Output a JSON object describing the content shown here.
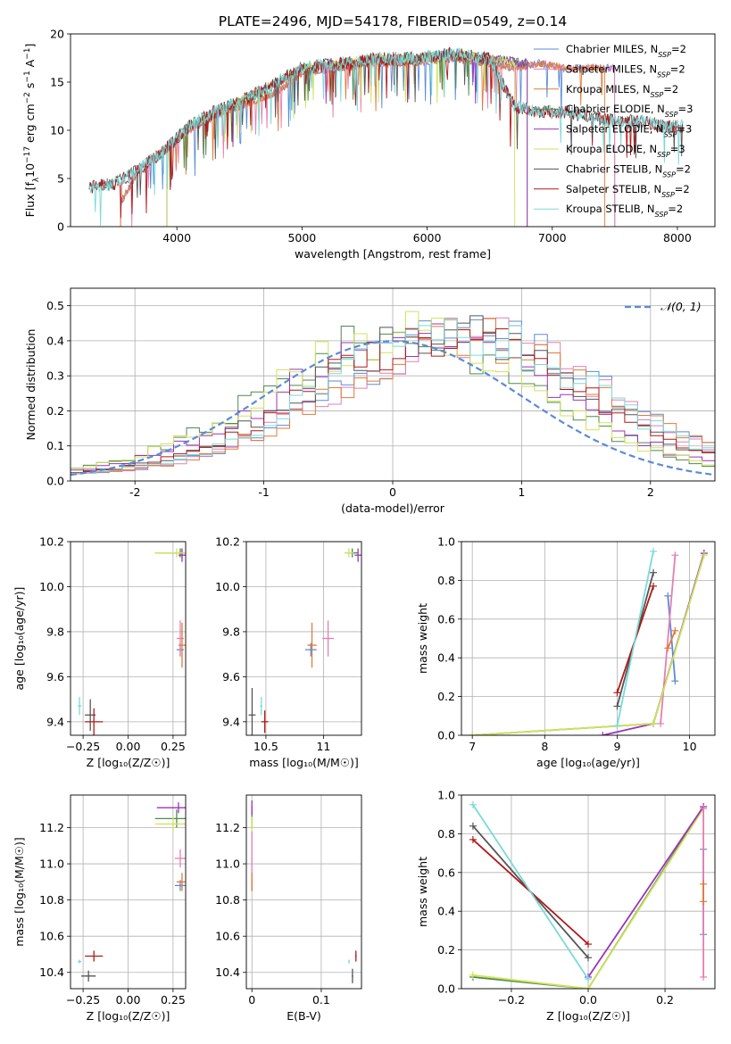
{
  "figure_title": "PLATE=2496, MJD=54178, FIBERID=0549, z=0.14",
  "colors": {
    "Chabrier MILES": "#5b8bd6",
    "Salpeter MILES": "#e57fb1",
    "Kroupa MILES": "#e07b39",
    "Chabrier ELODIE": "#4f8a4f",
    "Salpeter ELODIE": "#9b34b8",
    "Kroupa ELODIE": "#cfe35a",
    "Chabrier STELIB": "#555555",
    "Salpeter STELIB": "#b01818",
    "Kroupa STELIB": "#7ad9d9"
  },
  "chart_data": [
    {
      "id": "spectrum",
      "type": "line",
      "title": "PLATE=2496, MJD=54178, FIBERID=0549, z=0.14",
      "xlabel": "wavelength [Angstrom, rest frame]",
      "ylabel_parts": [
        "Flux [f",
        "λ",
        "10",
        "−17",
        " erg cm",
        "−2",
        " s",
        "−1",
        " A",
        "−1",
        "]"
      ],
      "xlim": [
        3150,
        8300
      ],
      "ylim": [
        0,
        20
      ],
      "xticks": [
        4000,
        5000,
        6000,
        7000,
        8000
      ],
      "yticks": [
        0,
        5,
        10,
        15,
        20
      ],
      "legend_position": "right",
      "series": [
        {
          "name": "Chabrier MILES",
          "suffix": "=2",
          "x": [
            3550,
            3700,
            3900,
            4100,
            4300,
            4500,
            4800,
            5000,
            5300,
            5600,
            5900,
            6200,
            6500,
            6700,
            6900,
            7100,
            7300,
            7500
          ],
          "y": [
            2.5,
            6,
            8,
            10,
            11.5,
            12.5,
            14,
            16,
            16.5,
            17,
            17,
            17.5,
            17,
            16.5,
            17,
            16.5,
            16.5,
            16.5
          ]
        },
        {
          "name": "Salpeter MILES",
          "suffix": "=2",
          "x": [
            3550,
            3700,
            3900,
            4100,
            4300,
            4500,
            4800,
            5000,
            5300,
            5600,
            5900,
            6200,
            6500,
            6700,
            6900,
            7100,
            7300,
            7500
          ],
          "y": [
            2.5,
            6,
            8,
            10,
            11.5,
            12.5,
            14,
            16,
            16.5,
            17,
            17,
            17.5,
            17,
            16.5,
            17,
            16.5,
            16.5,
            16.5
          ]
        },
        {
          "name": "Kroupa MILES",
          "suffix": "=2",
          "x": [
            3550,
            3700,
            3900,
            4100,
            4300,
            4500,
            4800,
            5000,
            5300,
            5600,
            5900,
            6200,
            6500,
            6700,
            6900,
            7100,
            7300,
            7420
          ],
          "y": [
            2.5,
            6,
            8,
            10,
            11.5,
            12.5,
            14,
            16,
            16.5,
            17,
            17,
            17.5,
            17,
            16.5,
            17,
            16.5,
            16.5,
            16.5
          ]
        },
        {
          "name": "Chabrier ELODIE",
          "suffix": "=3",
          "x": [
            3920,
            4100,
            4300,
            4500,
            4800,
            5000,
            5300,
            5600,
            5900,
            6200,
            6500,
            6800
          ],
          "y": [
            8,
            10.5,
            12,
            13,
            15,
            16.5,
            17,
            17.5,
            17.5,
            18,
            17.5,
            17
          ]
        },
        {
          "name": "Salpeter ELODIE",
          "suffix": "=3",
          "x": [
            3920,
            4100,
            4300,
            4500,
            4800,
            5000,
            5300,
            5600,
            5900,
            6200,
            6500,
            6800
          ],
          "y": [
            8,
            10.5,
            12,
            13,
            15,
            16.5,
            17,
            17.5,
            17.5,
            18,
            17.5,
            17
          ]
        },
        {
          "name": "Kroupa ELODIE",
          "suffix": "=3",
          "x": [
            3920,
            4100,
            4300,
            4500,
            4800,
            5000,
            5300,
            5600,
            5900,
            6200,
            6500,
            6700
          ],
          "y": [
            8,
            10.5,
            12,
            13,
            15,
            16.5,
            17,
            17.5,
            17.5,
            18,
            17.5,
            17
          ]
        },
        {
          "name": "Chabrier STELIB",
          "suffix": "=2",
          "x": [
            3300,
            3500,
            3700,
            3900,
            4100,
            4300,
            4500,
            4800,
            5000,
            5300,
            5600,
            5900,
            6200,
            6500,
            6700,
            6900,
            7100,
            7300,
            7500,
            7700,
            7900,
            8050
          ],
          "y": [
            4.2,
            4.5,
            6,
            8,
            10.5,
            12,
            13,
            15,
            16.5,
            17,
            17.5,
            17.5,
            18,
            17.5,
            12.5,
            12,
            12,
            11.5,
            11,
            11,
            10.5,
            10.5
          ]
        },
        {
          "name": "Salpeter STELIB",
          "suffix": "=2",
          "x": [
            3300,
            3500,
            3700,
            3900,
            4100,
            4300,
            4500,
            4800,
            5000,
            5300,
            5600,
            5900,
            6200,
            6500,
            6700,
            6900,
            7100,
            7300,
            7500,
            7700,
            7900,
            8050
          ],
          "y": [
            4.2,
            4.5,
            6,
            8,
            10.5,
            12,
            13,
            15,
            16.5,
            17,
            17.5,
            17.5,
            18,
            17.5,
            12.5,
            12,
            12,
            11.5,
            11,
            11,
            10.5,
            10.5
          ]
        },
        {
          "name": "Kroupa STELIB",
          "suffix": "=2",
          "x": [
            3300,
            3500,
            3700,
            3900,
            4100,
            4300,
            4500,
            4800,
            5000,
            5300,
            5600,
            5900,
            6200,
            6500,
            6700,
            6900,
            7100,
            7300,
            7500,
            7700,
            7900,
            8050
          ],
          "y": [
            4.2,
            4.5,
            6,
            8,
            10.5,
            12,
            13,
            15,
            16.5,
            17,
            17.5,
            17.5,
            18,
            17.5,
            12.5,
            12,
            12,
            11.5,
            11,
            11,
            10.5,
            10.5
          ]
        }
      ]
    },
    {
      "id": "residuals",
      "type": "line",
      "xlabel": "(data-model)/error",
      "ylabel": "Normed distribution",
      "xlim": [
        -2.5,
        2.5
      ],
      "ylim": [
        0,
        0.55
      ],
      "xticks": [
        -2,
        -1,
        0,
        1,
        2
      ],
      "yticks": [
        0.0,
        0.1,
        0.2,
        0.3,
        0.4,
        0.5
      ],
      "grid": true,
      "legend_position": "top-right",
      "gaussian_label": "𝒩(0, 1)",
      "gaussian_color": "#5b8bd6",
      "hist_mu": [
        0.6,
        0.6,
        0.6,
        0.1,
        0.2,
        0.1,
        0.4,
        0.4,
        0.5
      ]
    },
    {
      "id": "age-Z",
      "type": "scatter",
      "xlabel": "Z [log₁₀(Z/Z☉)]",
      "ylabel": "age  [log₁₀(age/yr)]",
      "xlim": [
        -0.32,
        0.32
      ],
      "ylim": [
        9.34,
        10.2
      ],
      "xticks": [
        -0.25,
        0.0,
        0.25
      ],
      "xtick_labels": [
        "−0.25",
        "0.00",
        "0.25"
      ],
      "yticks": [
        9.4,
        9.6,
        9.8,
        10.0,
        10.2
      ],
      "grid": true
    },
    {
      "id": "age-mass",
      "type": "scatter",
      "xlabel": "mass [log₁₀(M/M☉)]",
      "xlim": [
        10.33,
        11.33
      ],
      "ylim": [
        9.34,
        10.2
      ],
      "xticks": [
        10.5,
        11.0
      ],
      "yticks": [
        9.4,
        9.6,
        9.8,
        10.0,
        10.2
      ],
      "grid": true
    },
    {
      "id": "weight-age",
      "type": "line",
      "xlabel": "age  [log₁₀(age/yr)]",
      "ylabel": "mass weight",
      "xlim": [
        6.85,
        10.35
      ],
      "ylim": [
        0,
        1
      ],
      "xticks": [
        7,
        8,
        9,
        10
      ],
      "yticks": [
        0.0,
        0.2,
        0.4,
        0.6,
        0.8,
        1.0
      ],
      "grid": true,
      "series": [
        {
          "name": "Chabrier MILES",
          "x": [
            9.7,
            9.8
          ],
          "y": [
            0.72,
            0.28
          ]
        },
        {
          "name": "Salpeter MILES",
          "x": [
            9.6,
            9.8
          ],
          "y": [
            0.06,
            0.93
          ]
        },
        {
          "name": "Kroupa MILES",
          "x": [
            9.7,
            9.8
          ],
          "y": [
            0.45,
            0.54
          ]
        },
        {
          "name": "Chabrier ELODIE",
          "x": [
            7.0,
            9.5,
            10.2
          ],
          "y": [
            0.0,
            0.06,
            0.94
          ]
        },
        {
          "name": "Salpeter ELODIE",
          "x": [
            8.8,
            9.5,
            10.2
          ],
          "y": [
            0.0,
            0.06,
            0.94
          ]
        },
        {
          "name": "Kroupa ELODIE",
          "x": [
            7.0,
            9.5,
            10.2
          ],
          "y": [
            0.0,
            0.06,
            0.93
          ]
        },
        {
          "name": "Chabrier STELIB",
          "x": [
            9.0,
            9.5
          ],
          "y": [
            0.15,
            0.84
          ]
        },
        {
          "name": "Salpeter STELIB",
          "x": [
            9.0,
            9.5
          ],
          "y": [
            0.22,
            0.77
          ]
        },
        {
          "name": "Kroupa STELIB",
          "x": [
            9.0,
            9.5
          ],
          "y": [
            0.05,
            0.95
          ]
        }
      ]
    },
    {
      "id": "mass-Z",
      "type": "scatter",
      "xlabel": "Z [log₁₀(Z/Z☉)]",
      "ylabel": "mass [log₁₀(M/M☉)]",
      "xlim": [
        -0.32,
        0.32
      ],
      "ylim": [
        10.31,
        11.38
      ],
      "xticks": [
        -0.25,
        0.0,
        0.25
      ],
      "xtick_labels": [
        "−0.25",
        "0.00",
        "0.25"
      ],
      "yticks": [
        10.4,
        10.6,
        10.8,
        11.0,
        11.2
      ],
      "grid": true
    },
    {
      "id": "mass-EBV",
      "type": "scatter",
      "xlabel": "E(B-V)",
      "xlim": [
        -0.008,
        0.158
      ],
      "ylim": [
        10.31,
        11.38
      ],
      "xticks": [
        0.0,
        0.1
      ],
      "yticks": [
        10.4,
        10.6,
        10.8,
        11.0,
        11.2
      ],
      "grid": true
    },
    {
      "id": "weight-Z",
      "type": "line",
      "xlabel": "Z [log₁₀(Z/Z☉)]",
      "ylabel": "mass weight",
      "xlim": [
        -0.33,
        0.33
      ],
      "ylim": [
        0,
        1
      ],
      "xticks": [
        -0.2,
        0.0,
        0.2
      ],
      "xtick_labels": [
        "−0.2",
        "0.0",
        "0.2"
      ],
      "yticks": [
        0.0,
        0.2,
        0.4,
        0.6,
        0.8,
        1.0
      ],
      "grid": true,
      "series": [
        {
          "name": "Chabrier ELODIE",
          "x": [
            -0.3,
            0.0,
            0.3
          ],
          "y": [
            0.06,
            0.0,
            0.94
          ]
        },
        {
          "name": "Kroupa ELODIE",
          "x": [
            -0.3,
            0.0,
            0.3
          ],
          "y": [
            0.07,
            0.0,
            0.93
          ]
        },
        {
          "name": "Salpeter ELODIE",
          "x": [
            0.0,
            0.3
          ],
          "y": [
            0.06,
            0.94
          ]
        },
        {
          "name": "Chabrier STELIB",
          "x": [
            -0.3,
            0.0
          ],
          "y": [
            0.84,
            0.16
          ]
        },
        {
          "name": "Salpeter STELIB",
          "x": [
            -0.3,
            0.0
          ],
          "y": [
            0.77,
            0.23
          ]
        },
        {
          "name": "Kroupa STELIB",
          "x": [
            -0.3,
            0.0
          ],
          "y": [
            0.95,
            0.05
          ]
        },
        {
          "name": "Chabrier MILES",
          "x": [
            0.3,
            0.3
          ],
          "y": [
            0.72,
            0.28
          ]
        },
        {
          "name": "Salpeter MILES",
          "x": [
            0.3,
            0.3
          ],
          "y": [
            0.93,
            0.06
          ]
        },
        {
          "name": "Kroupa MILES",
          "x": [
            0.3,
            0.3
          ],
          "y": [
            0.54,
            0.45
          ]
        }
      ]
    }
  ],
  "points": {
    "age_Z": [
      {
        "name": "Chabrier MILES",
        "x": 0.29,
        "y": 9.72,
        "ex": 0.02,
        "ey": 0.03
      },
      {
        "name": "Salpeter MILES",
        "x": 0.29,
        "y": 9.77,
        "ex": 0.02,
        "ey": 0.08
      },
      {
        "name": "Kroupa MILES",
        "x": 0.3,
        "y": 9.74,
        "ex": 0.02,
        "ey": 0.1
      },
      {
        "name": "Chabrier ELODIE",
        "x": 0.29,
        "y": 10.15,
        "ex": 0.14,
        "ey": 0.02
      },
      {
        "name": "Salpeter ELODIE",
        "x": 0.3,
        "y": 10.14,
        "ex": 0.02,
        "ey": 0.03
      },
      {
        "name": "Kroupa ELODIE",
        "x": 0.27,
        "y": 10.15,
        "ex": 0.12,
        "ey": 0.02
      },
      {
        "name": "Chabrier STELIB",
        "x": -0.21,
        "y": 9.43,
        "ex": 0.03,
        "ey": 0.07
      },
      {
        "name": "Salpeter STELIB",
        "x": -0.19,
        "y": 9.4,
        "ex": 0.05,
        "ey": 0.06
      },
      {
        "name": "Kroupa STELIB",
        "x": -0.27,
        "y": 9.47,
        "ex": 0.01,
        "ey": 0.04
      }
    ],
    "age_mass": [
      {
        "name": "Chabrier MILES",
        "x": 10.89,
        "y": 9.72,
        "ex": 0.05,
        "ey": 0.03
      },
      {
        "name": "Salpeter MILES",
        "x": 11.04,
        "y": 9.77,
        "ex": 0.05,
        "ey": 0.08
      },
      {
        "name": "Kroupa MILES",
        "x": 10.9,
        "y": 9.74,
        "ex": 0.04,
        "ey": 0.1
      },
      {
        "name": "Chabrier ELODIE",
        "x": 11.25,
        "y": 10.15,
        "ex": 0.05,
        "ey": 0.02
      },
      {
        "name": "Salpeter ELODIE",
        "x": 11.3,
        "y": 10.14,
        "ex": 0.03,
        "ey": 0.03
      },
      {
        "name": "Kroupa ELODIE",
        "x": 11.22,
        "y": 10.15,
        "ex": 0.04,
        "ey": 0.02
      },
      {
        "name": "Chabrier STELIB",
        "x": 10.38,
        "y": 9.43,
        "ex": 0.03,
        "ey": 0.12
      },
      {
        "name": "Salpeter STELIB",
        "x": 10.49,
        "y": 9.4,
        "ex": 0.03,
        "ey": 0.05
      },
      {
        "name": "Kroupa STELIB",
        "x": 10.46,
        "y": 9.47,
        "ex": 0.01,
        "ey": 0.04
      }
    ],
    "mass_Z": [
      {
        "name": "Chabrier MILES",
        "x": 0.29,
        "y": 10.88,
        "ex": 0.03,
        "ey": 0.03
      },
      {
        "name": "Salpeter MILES",
        "x": 0.29,
        "y": 11.03,
        "ex": 0.03,
        "ey": 0.05
      },
      {
        "name": "Kroupa MILES",
        "x": 0.3,
        "y": 10.9,
        "ex": 0.03,
        "ey": 0.05
      },
      {
        "name": "Chabrier ELODIE",
        "x": 0.27,
        "y": 11.25,
        "ex": 0.12,
        "ey": 0.05
      },
      {
        "name": "Salpeter ELODIE",
        "x": 0.28,
        "y": 11.31,
        "ex": 0.12,
        "ey": 0.03
      },
      {
        "name": "Kroupa ELODIE",
        "x": 0.25,
        "y": 11.22,
        "ex": 0.1,
        "ey": 0.04
      },
      {
        "name": "Chabrier STELIB",
        "x": -0.22,
        "y": 10.38,
        "ex": 0.04,
        "ey": 0.03
      },
      {
        "name": "Salpeter STELIB",
        "x": -0.19,
        "y": 10.49,
        "ex": 0.05,
        "ey": 0.03
      },
      {
        "name": "Kroupa STELIB",
        "x": -0.27,
        "y": 10.46,
        "ex": 0.01,
        "ey": 0.01
      }
    ],
    "mass_EBV": [
      {
        "name": "Chabrier MILES",
        "x": 0.0,
        "y": 10.88,
        "ex": 0.001,
        "ey": 0.03
      },
      {
        "name": "Salpeter MILES",
        "x": 0.0,
        "y": 11.03,
        "ex": 0.001,
        "ey": 0.15
      },
      {
        "name": "Kroupa MILES",
        "x": 0.0,
        "y": 10.9,
        "ex": 0.001,
        "ey": 0.05
      },
      {
        "name": "Chabrier ELODIE",
        "x": 0.0,
        "y": 11.25,
        "ex": 0.001,
        "ey": 0.05
      },
      {
        "name": "Salpeter ELODIE",
        "x": 0.0,
        "y": 11.31,
        "ex": 0.001,
        "ey": 0.04
      },
      {
        "name": "Kroupa ELODIE",
        "x": 0.0,
        "y": 11.22,
        "ex": 0.001,
        "ey": 0.04
      },
      {
        "name": "Chabrier STELIB",
        "x": 0.145,
        "y": 10.38,
        "ex": 0.001,
        "ey": 0.04
      },
      {
        "name": "Salpeter STELIB",
        "x": 0.15,
        "y": 10.49,
        "ex": 0.001,
        "ey": 0.03
      },
      {
        "name": "Kroupa STELIB",
        "x": 0.14,
        "y": 10.46,
        "ex": 0.001,
        "ey": 0.01
      }
    ]
  }
}
